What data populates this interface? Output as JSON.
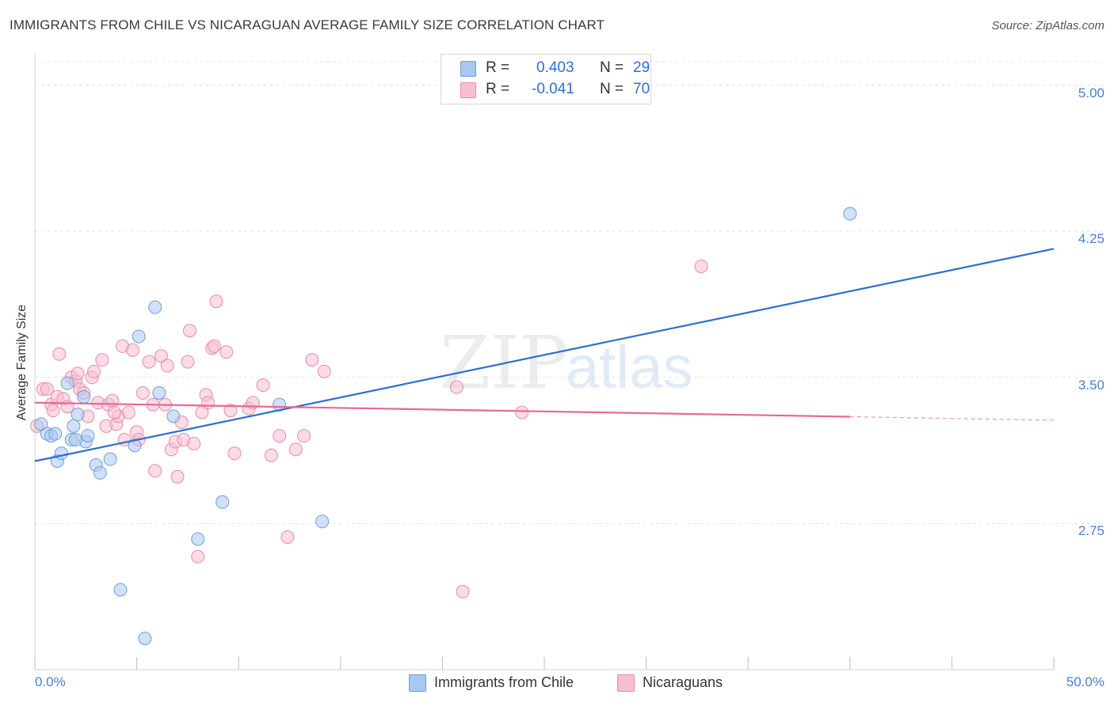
{
  "title": "IMMIGRANTS FROM CHILE VS NICARAGUAN AVERAGE FAMILY SIZE CORRELATION CHART",
  "source": "Source: ZipAtlas.com",
  "watermark": {
    "zip": "ZIP",
    "atlas": "atlas"
  },
  "colors": {
    "blue_fill": "#a9c8f0",
    "blue_stroke": "#6f9ed9",
    "blue_line": "#2b6fcf",
    "pink_fill": "#f6bfd1",
    "pink_stroke": "#e98aa9",
    "pink_line": "#e76a93",
    "grid": "#e3e3e3",
    "axis_text": "#4a7fd0"
  },
  "stats": [
    {
      "r_label": "R =",
      "r_value": "0.403",
      "n_label": "N =",
      "n_value": "29"
    },
    {
      "r_label": "R =",
      "r_value": "-0.041",
      "n_label": "N =",
      "n_value": "70"
    }
  ],
  "legend": [
    "Immigrants from Chile",
    "Nicaraguans"
  ],
  "chart_data": {
    "type": "scatter",
    "title": "IMMIGRANTS FROM CHILE VS NICARAGUAN AVERAGE FAMILY SIZE CORRELATION CHART",
    "xlabel": "",
    "ylabel": "Average Family Size",
    "xlim": [
      0,
      50
    ],
    "ylim": [
      2.0,
      5.12
    ],
    "x_tick_labels": [
      "0.0%",
      "50.0%"
    ],
    "y_ticks": [
      2.75,
      3.5,
      4.25,
      5.0
    ],
    "y_tick_labels": [
      "2.75",
      "3.50",
      "4.25",
      "5.00"
    ],
    "grid": true,
    "legend_position": "bottom",
    "series": [
      {
        "name": "Immigrants from Chile",
        "color": "#6f9ed9",
        "points": [
          [
            0.3,
            3.26
          ],
          [
            0.6,
            3.21
          ],
          [
            0.8,
            3.2
          ],
          [
            1.0,
            3.21
          ],
          [
            1.1,
            3.07
          ],
          [
            1.3,
            3.11
          ],
          [
            1.6,
            3.47
          ],
          [
            1.8,
            3.18
          ],
          [
            1.9,
            3.25
          ],
          [
            2.1,
            3.31
          ],
          [
            2.4,
            3.4
          ],
          [
            2.5,
            3.17
          ],
          [
            2.6,
            3.2
          ],
          [
            3.0,
            3.05
          ],
          [
            3.2,
            3.01
          ],
          [
            3.7,
            3.08
          ],
          [
            4.2,
            2.41
          ],
          [
            4.9,
            3.15
          ],
          [
            5.1,
            3.71
          ],
          [
            5.4,
            2.16
          ],
          [
            5.9,
            3.86
          ],
          [
            6.1,
            3.42
          ],
          [
            6.8,
            3.3
          ],
          [
            8.0,
            2.67
          ],
          [
            9.2,
            2.86
          ],
          [
            12.0,
            3.36
          ],
          [
            14.1,
            2.76
          ],
          [
            40.0,
            4.34
          ],
          [
            2.0,
            3.18
          ]
        ]
      },
      {
        "name": "Nicaraguans",
        "color": "#e98aa9",
        "points": [
          [
            0.1,
            3.25
          ],
          [
            0.4,
            3.44
          ],
          [
            0.6,
            3.44
          ],
          [
            0.8,
            3.36
          ],
          [
            0.9,
            3.33
          ],
          [
            1.1,
            3.4
          ],
          [
            1.2,
            3.62
          ],
          [
            1.4,
            3.39
          ],
          [
            1.6,
            3.35
          ],
          [
            1.8,
            3.5
          ],
          [
            2.0,
            3.48
          ],
          [
            2.1,
            3.52
          ],
          [
            2.2,
            3.44
          ],
          [
            2.4,
            3.42
          ],
          [
            2.6,
            3.3
          ],
          [
            2.8,
            3.5
          ],
          [
            2.9,
            3.53
          ],
          [
            3.1,
            3.37
          ],
          [
            3.3,
            3.59
          ],
          [
            3.5,
            3.25
          ],
          [
            3.6,
            3.36
          ],
          [
            3.8,
            3.38
          ],
          [
            4.0,
            3.26
          ],
          [
            4.1,
            3.3
          ],
          [
            4.3,
            3.66
          ],
          [
            4.4,
            3.18
          ],
          [
            4.6,
            3.32
          ],
          [
            4.8,
            3.64
          ],
          [
            5.0,
            3.22
          ],
          [
            5.1,
            3.18
          ],
          [
            5.3,
            3.42
          ],
          [
            5.6,
            3.58
          ],
          [
            5.8,
            3.36
          ],
          [
            5.9,
            3.02
          ],
          [
            6.2,
            3.61
          ],
          [
            6.4,
            3.36
          ],
          [
            6.5,
            3.56
          ],
          [
            6.7,
            3.13
          ],
          [
            6.9,
            3.17
          ],
          [
            7.0,
            2.99
          ],
          [
            7.2,
            3.27
          ],
          [
            7.3,
            3.18
          ],
          [
            7.5,
            3.58
          ],
          [
            7.6,
            3.74
          ],
          [
            7.8,
            3.16
          ],
          [
            8.0,
            2.58
          ],
          [
            8.2,
            3.32
          ],
          [
            8.4,
            3.41
          ],
          [
            8.5,
            3.37
          ],
          [
            8.7,
            3.65
          ],
          [
            8.8,
            3.66
          ],
          [
            8.9,
            3.89
          ],
          [
            9.4,
            3.63
          ],
          [
            9.6,
            3.33
          ],
          [
            9.8,
            3.11
          ],
          [
            10.5,
            3.34
          ],
          [
            10.7,
            3.37
          ],
          [
            11.2,
            3.46
          ],
          [
            11.6,
            3.1
          ],
          [
            12.0,
            3.2
          ],
          [
            12.4,
            2.68
          ],
          [
            12.8,
            3.13
          ],
          [
            13.2,
            3.2
          ],
          [
            13.6,
            3.59
          ],
          [
            14.2,
            3.53
          ],
          [
            20.7,
            3.45
          ],
          [
            21.0,
            2.4
          ],
          [
            23.9,
            3.32
          ],
          [
            32.7,
            4.07
          ],
          [
            3.9,
            3.32
          ]
        ]
      }
    ],
    "trend_lines": [
      {
        "series": "Immigrants from Chile",
        "x": [
          0,
          50
        ],
        "y": [
          3.07,
          4.16
        ],
        "dashed_from_x": null
      },
      {
        "series": "Nicaraguans",
        "x": [
          0,
          50
        ],
        "y": [
          3.37,
          3.28
        ],
        "dashed_from_x": 40
      }
    ]
  }
}
